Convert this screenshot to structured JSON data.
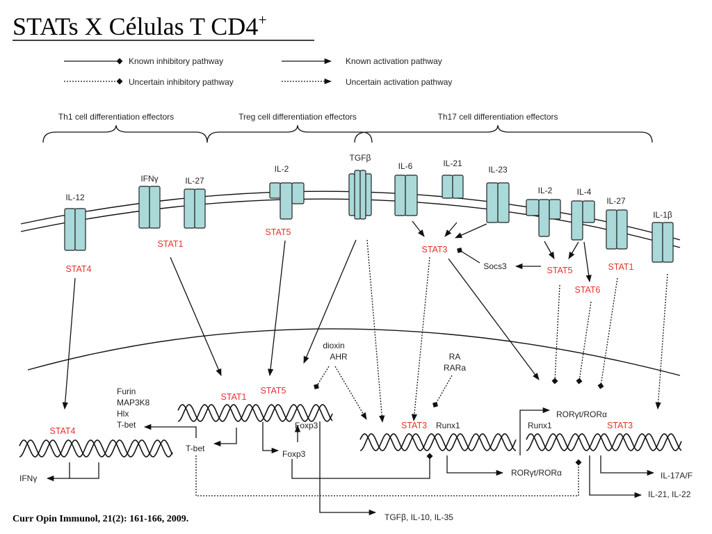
{
  "title": {
    "text": "STATs X Células T CD4",
    "superscript": "+"
  },
  "legend": {
    "known_inhibitory": "Known inhibitory pathway",
    "uncertain_inhibitory": "Uncertain inhibitory pathway",
    "known_activation": "Known activation pathway",
    "uncertain_activation": "Uncertain activation pathway"
  },
  "groups": {
    "th1": "Th1 cell differentiation effectors",
    "treg": "Treg cell differentiation effectors",
    "th17": "Th17 cell differentiation effectors"
  },
  "receptors": [
    "IL-12",
    "IFNγ",
    "IL-27",
    "IL-2",
    "TGFβ",
    "IL-6",
    "IL-21",
    "IL-23",
    "IL-2",
    "IL-4",
    "IL-27",
    "IL-1β"
  ],
  "cytoplasm": {
    "stat4": "STAT4",
    "stat1_th1": "STAT1",
    "stat5_treg": "STAT5",
    "stat3": "STAT3",
    "stat5_th17": "STAT5",
    "stat6": "STAT6",
    "stat1_th17": "STAT1",
    "socs3": "Socs3"
  },
  "nucleus": {
    "stat4": "STAT4",
    "ifng": "IFNγ",
    "furin": "Furin",
    "map3k8": "MAP3K8",
    "hlx": "Hlx",
    "tbet_top": "T-bet",
    "stat1": "STAT1",
    "stat5": "STAT5",
    "foxp3_a": "Foxp3",
    "tbet": "T-bet",
    "foxp3_b": "Foxp3",
    "dioxin": "dioxin",
    "ahr": "AHR",
    "ra": "RA",
    "rara": "RARa",
    "stat3_a": "STAT3",
    "runx1_a": "Runx1",
    "ror_a": "RORγt/RORα",
    "runx1_b": "Runx1",
    "ror_b": "RORγt/RORα",
    "stat3_b": "STAT3",
    "il17": "IL-17A/F",
    "il21_22": "IL-21, IL-22",
    "treg_out": "TGFβ, IL-10, IL-35"
  },
  "citation": "Curr Opin Immunol, 21(2): 161-166, 2009.",
  "colors": {
    "stat": "#e8302a",
    "receptor": "#a9d9d8"
  }
}
